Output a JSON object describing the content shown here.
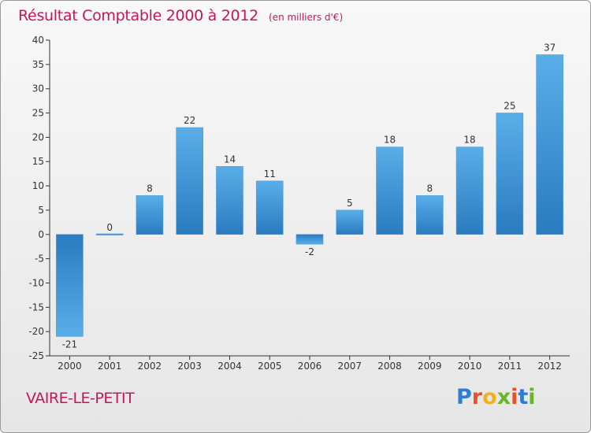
{
  "header": {
    "title": "Résultat Comptable 2000 à 2012",
    "subtitle": "(en milliers d'€)"
  },
  "footer": {
    "commune": "VAIRE-LE-PETIT",
    "logo_text": "Proxiti"
  },
  "colors": {
    "bar_top": "#5aaee8",
    "bar_bottom": "#2a7bbf",
    "title": "#c2185b",
    "logo": [
      "#2d7dd2",
      "#e8502a",
      "#f2b01e",
      "#6bb52c",
      "#e8502a",
      "#2d7dd2",
      "#6bb52c"
    ]
  },
  "chart_data": {
    "type": "bar",
    "title": "Résultat Comptable 2000 à 2012",
    "subtitle": "(en milliers d'€)",
    "categories": [
      "2000",
      "2001",
      "2002",
      "2003",
      "2004",
      "2005",
      "2006",
      "2007",
      "2008",
      "2009",
      "2010",
      "2011",
      "2012"
    ],
    "values": [
      -21,
      0,
      8,
      22,
      14,
      11,
      -2,
      5,
      18,
      8,
      18,
      25,
      37
    ],
    "data_labels": [
      "-21",
      "0",
      "8",
      "22",
      "14",
      "11",
      "-2",
      "5",
      "18",
      "8",
      "18",
      "25",
      "37"
    ],
    "xlabel": "",
    "ylabel": "",
    "ylim": [
      -25,
      40
    ],
    "yticks": [
      -25,
      -20,
      -15,
      -10,
      -5,
      0,
      5,
      10,
      15,
      20,
      25,
      30,
      35,
      40
    ],
    "grid": false
  }
}
